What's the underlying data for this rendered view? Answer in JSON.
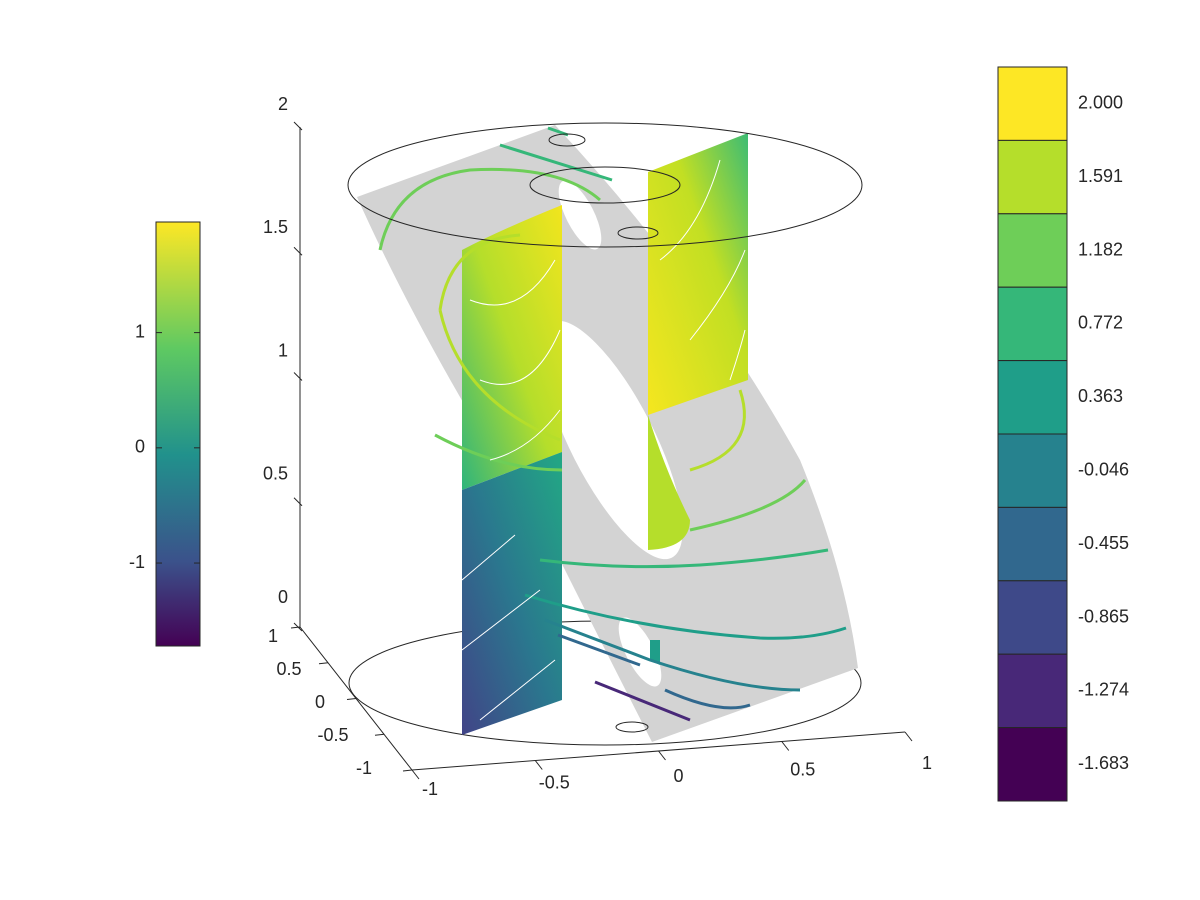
{
  "chart_data": {
    "type": "surface3d",
    "xlim": [
      -1,
      1
    ],
    "xticks": [
      -1,
      -0.5,
      0,
      0.5,
      1
    ],
    "ylim": [
      -1,
      1
    ],
    "yticks": [
      -1,
      -0.5,
      0,
      0.5,
      1
    ],
    "zlim": [
      0,
      2
    ],
    "zticks": [
      0,
      0.5,
      1,
      1.5,
      2
    ],
    "colorbar": {
      "lim": [
        -1.72,
        1.96
      ],
      "ticks": [
        -1,
        0,
        1
      ]
    },
    "colorbar2": {
      "levels": [
        {
          "value": 2,
          "label": "2.000"
        },
        1.591,
        1.182,
        0.772,
        0.363,
        -0.046,
        -0.455,
        -0.865,
        -1.274,
        -1.683
      ],
      "colors": [
        "#fde725",
        "#b5de2b",
        "#6ece58",
        "#35b779",
        "#1f9e89",
        "#26828e",
        "#31688e",
        "#3e4989",
        "#482878",
        "#440154"
      ]
    }
  }
}
